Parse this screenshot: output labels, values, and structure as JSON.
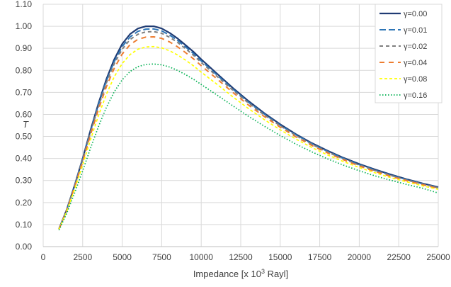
{
  "chart_data": {
    "type": "line",
    "xlabel": "Impedance [x 10",
    "xlabel_sup": "3",
    "xlabel_suffix": " Rayl]",
    "ylabel": "T",
    "xlim": [
      0,
      25000
    ],
    "ylim": [
      0.0,
      1.1
    ],
    "x_ticks": [
      0,
      2500,
      5000,
      7500,
      10000,
      12500,
      15000,
      17500,
      20000,
      22500,
      25000
    ],
    "x_tick_labels": [
      "0",
      "2500",
      "5000",
      "7500",
      "10000",
      "12500",
      "15000",
      "17500",
      "20000",
      "22500",
      "25000"
    ],
    "y_ticks": [
      0.0,
      0.1,
      0.2,
      0.3,
      0.4,
      0.5,
      0.6,
      0.7,
      0.8,
      0.9,
      1.0,
      1.1
    ],
    "y_tick_labels": [
      "0.00",
      "0.10",
      "0.20",
      "0.30",
      "0.40",
      "0.50",
      "0.60",
      "0.70",
      "0.80",
      "0.90",
      "1.00",
      "1.10"
    ],
    "grid": true,
    "legend_position": "top-right",
    "x": [
      1000,
      1500,
      2000,
      2500,
      3000,
      3500,
      4000,
      4500,
      5000,
      5500,
      6000,
      6500,
      7000,
      7500,
      8000,
      8500,
      9000,
      9500,
      10000,
      11000,
      12000,
      13000,
      14000,
      15000,
      16000,
      17000,
      18000,
      19000,
      20000,
      21000,
      22000,
      23000,
      24000,
      25000
    ],
    "series": [
      {
        "name": "γ=0.00",
        "color": "#1F3B73",
        "dash": "",
        "width": 2.2,
        "values": [
          0.08,
          0.17,
          0.28,
          0.4,
          0.53,
          0.65,
          0.76,
          0.85,
          0.92,
          0.965,
          0.99,
          1.0,
          1.0,
          0.99,
          0.97,
          0.945,
          0.915,
          0.885,
          0.85,
          0.785,
          0.72,
          0.66,
          0.605,
          0.555,
          0.51,
          0.47,
          0.435,
          0.403,
          0.375,
          0.35,
          0.327,
          0.306,
          0.287,
          0.27
        ]
      },
      {
        "name": "γ=0.01",
        "color": "#2E75B6",
        "dash": "9,4",
        "width": 2.0,
        "values": [
          0.08,
          0.169,
          0.278,
          0.397,
          0.525,
          0.644,
          0.752,
          0.84,
          0.908,
          0.952,
          0.977,
          0.987,
          0.988,
          0.979,
          0.96,
          0.936,
          0.907,
          0.877,
          0.843,
          0.779,
          0.715,
          0.655,
          0.601,
          0.551,
          0.507,
          0.467,
          0.432,
          0.4,
          0.372,
          0.347,
          0.325,
          0.304,
          0.285,
          0.268
        ]
      },
      {
        "name": "γ=0.02",
        "color": "#7F7F7F",
        "dash": "5,4",
        "width": 2.0,
        "values": [
          0.08,
          0.168,
          0.276,
          0.394,
          0.52,
          0.637,
          0.743,
          0.83,
          0.896,
          0.94,
          0.964,
          0.975,
          0.976,
          0.968,
          0.95,
          0.927,
          0.899,
          0.869,
          0.836,
          0.773,
          0.71,
          0.651,
          0.597,
          0.548,
          0.504,
          0.464,
          0.429,
          0.398,
          0.37,
          0.345,
          0.323,
          0.302,
          0.284,
          0.267
        ]
      },
      {
        "name": "γ=0.04",
        "color": "#ED7D31",
        "dash": "7,6",
        "width": 2.0,
        "values": [
          0.079,
          0.166,
          0.271,
          0.386,
          0.509,
          0.623,
          0.726,
          0.81,
          0.874,
          0.917,
          0.941,
          0.951,
          0.952,
          0.945,
          0.929,
          0.907,
          0.881,
          0.853,
          0.821,
          0.761,
          0.7,
          0.642,
          0.59,
          0.542,
          0.498,
          0.459,
          0.425,
          0.394,
          0.366,
          0.341,
          0.319,
          0.299,
          0.281,
          0.264
        ]
      },
      {
        "name": "γ=0.08",
        "color": "#FFFF00",
        "dash": "4,3",
        "width": 1.7,
        "values": [
          0.078,
          0.162,
          0.262,
          0.371,
          0.487,
          0.595,
          0.692,
          0.771,
          0.831,
          0.872,
          0.896,
          0.906,
          0.908,
          0.902,
          0.889,
          0.87,
          0.847,
          0.821,
          0.792,
          0.737,
          0.68,
          0.626,
          0.576,
          0.53,
          0.488,
          0.45,
          0.416,
          0.386,
          0.359,
          0.335,
          0.313,
          0.294,
          0.276,
          0.26
        ]
      },
      {
        "name": "γ=0.16",
        "color": "#00B050",
        "dash": "1.5,2.5",
        "width": 1.7,
        "values": [
          0.075,
          0.153,
          0.245,
          0.344,
          0.448,
          0.545,
          0.632,
          0.703,
          0.757,
          0.795,
          0.817,
          0.827,
          0.829,
          0.825,
          0.815,
          0.8,
          0.781,
          0.76,
          0.736,
          0.688,
          0.639,
          0.591,
          0.546,
          0.504,
          0.465,
          0.43,
          0.398,
          0.37,
          0.344,
          0.321,
          0.301,
          0.282,
          0.265,
          0.243
        ]
      }
    ]
  }
}
